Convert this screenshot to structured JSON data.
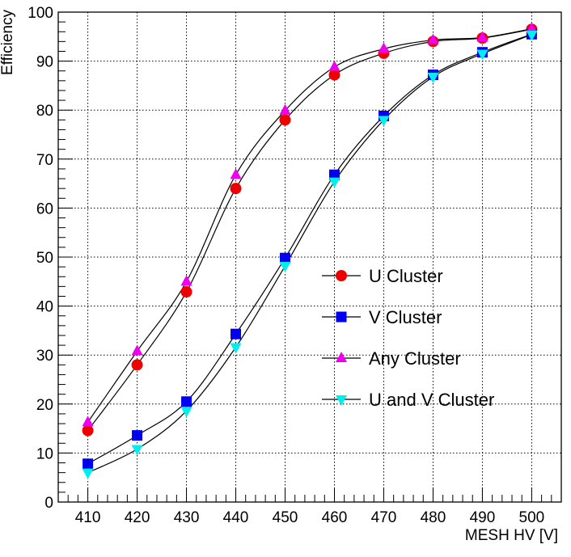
{
  "chart_data": {
    "type": "line",
    "xlabel": "MESH HV [V]",
    "ylabel": "Efficiency",
    "xlim": [
      404,
      506
    ],
    "ylim": [
      0,
      100
    ],
    "x_ticks": [
      410,
      420,
      430,
      440,
      450,
      460,
      470,
      480,
      490,
      500
    ],
    "y_ticks": [
      0,
      10,
      20,
      30,
      40,
      50,
      60,
      70,
      80,
      90,
      100
    ],
    "grid": true,
    "legend_position": "center-right",
    "x": [
      410,
      420,
      430,
      440,
      450,
      460,
      470,
      480,
      490,
      500
    ],
    "series": [
      {
        "name": "U Cluster",
        "marker": "circle",
        "color": "#ee0000",
        "values": [
          14.6,
          28.0,
          42.9,
          64.0,
          78.0,
          87.2,
          91.6,
          94.0,
          94.7,
          96.5
        ]
      },
      {
        "name": "V Cluster",
        "marker": "square",
        "color": "#0000ee",
        "values": [
          7.8,
          13.6,
          20.5,
          34.3,
          49.8,
          66.8,
          78.8,
          87.2,
          91.8,
          95.5
        ]
      },
      {
        "name": "Any Cluster",
        "marker": "triangle-up",
        "color": "#ee00ee",
        "values": [
          16.3,
          30.8,
          45.0,
          66.8,
          79.9,
          88.8,
          92.5,
          94.3,
          94.8,
          96.6
        ]
      },
      {
        "name": "U and V Cluster",
        "marker": "triangle-down",
        "color": "#00eeee",
        "values": [
          6.0,
          10.8,
          18.6,
          31.6,
          48.2,
          65.4,
          78.0,
          86.8,
          91.5,
          95.4
        ]
      }
    ]
  }
}
